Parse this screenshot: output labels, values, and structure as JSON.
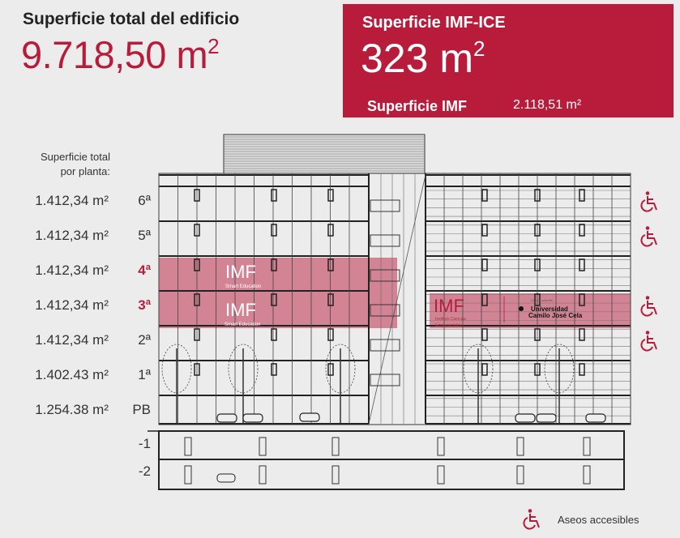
{
  "header": {
    "total_title": "Superficie total del edificio",
    "total_value": "9.718,50 m",
    "total_unit_sup": "2"
  },
  "imf_box": {
    "title": "Superficie IMF-ICE",
    "value": "323 m",
    "unit_sup": "2",
    "sub_label": "Superficie IMF",
    "sub_value": "2.118,51 m²",
    "color": "#b91c3b"
  },
  "per_floor_label": [
    "Superficie total",
    "por planta:"
  ],
  "floors": [
    {
      "area": "1.412,34 m²",
      "name": "6ª",
      "highlight": false,
      "accessible": true
    },
    {
      "area": "1.412,34 m²",
      "name": "5ª",
      "highlight": false,
      "accessible": true
    },
    {
      "area": "1.412,34 m²",
      "name": "4ª",
      "highlight": true,
      "accessible": false
    },
    {
      "area": "1.412,34 m²",
      "name": "3ª",
      "highlight": true,
      "accessible": true
    },
    {
      "area": "1.412,34 m²",
      "name": "2ª",
      "highlight": false,
      "accessible": true
    },
    {
      "area": "1.402.43 m²",
      "name": "1ª",
      "highlight": false,
      "accessible": false
    },
    {
      "area": "1.254.38 m²",
      "name": "PB",
      "highlight": false,
      "accessible": false
    }
  ],
  "basements": [
    "-1",
    "-2"
  ],
  "logos": {
    "imf": "IMF",
    "imf_tagline": "Smart Education",
    "ice_tagline_1": "Instituto Ciencias",
    "ice_tagline_2": "Empresariales",
    "adscrito": "Centro adscrito",
    "ucjc_1": "Universidad",
    "ucjc_2": "Camilo José Cela"
  },
  "legend": {
    "icon": "wheelchair-icon",
    "label": "Aseos accesibles"
  }
}
